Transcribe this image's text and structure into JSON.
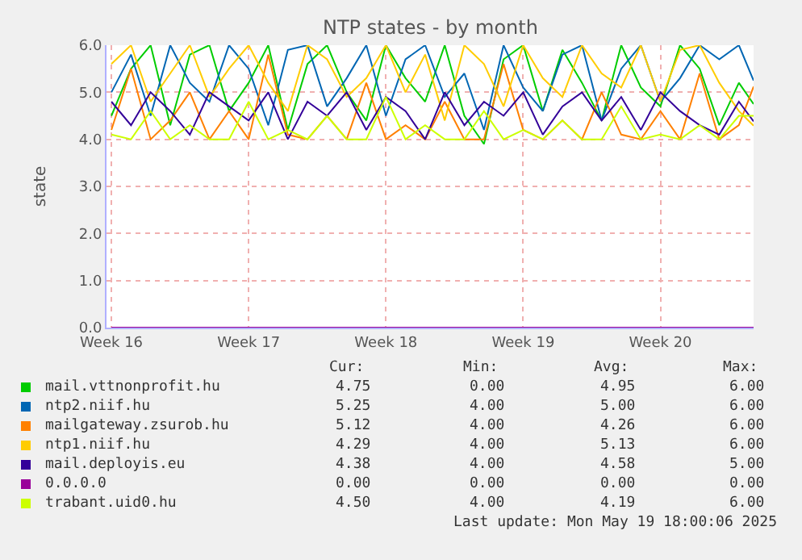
{
  "chart_data": {
    "type": "line",
    "title": "NTP states - by month",
    "ylabel": "state",
    "x": [
      "2025-04-17",
      "2025-04-18",
      "2025-04-19",
      "2025-04-20",
      "2025-04-21",
      "2025-04-22",
      "2025-04-23",
      "2025-04-24",
      "2025-04-25",
      "2025-04-26",
      "2025-04-27",
      "2025-04-28",
      "2025-04-29",
      "2025-04-30",
      "2025-05-01",
      "2025-05-02",
      "2025-05-03",
      "2025-05-04",
      "2025-05-05",
      "2025-05-06",
      "2025-05-07",
      "2025-05-08",
      "2025-05-09",
      "2025-05-10",
      "2025-05-11",
      "2025-05-12",
      "2025-05-13",
      "2025-05-14",
      "2025-05-15",
      "2025-05-16",
      "2025-05-17",
      "2025-05-18",
      "2025-05-19",
      "2025-05-19T18:00"
    ],
    "xlim": [
      "2025-04-16T18:00",
      "2025-05-19T18:00"
    ],
    "xticks": [
      {
        "value": "2025-04-17",
        "label": "Week 16"
      },
      {
        "value": "2025-04-24",
        "label": "Week 17"
      },
      {
        "value": "2025-05-01",
        "label": "Week 18"
      },
      {
        "value": "2025-05-08",
        "label": "Week 19"
      },
      {
        "value": "2025-05-15",
        "label": "Week 20"
      }
    ],
    "ylim": [
      0,
      6
    ],
    "yticks": [
      {
        "value": 0,
        "label": "0.0"
      },
      {
        "value": 1,
        "label": "1.0"
      },
      {
        "value": 2,
        "label": "2.0"
      },
      {
        "value": 3,
        "label": "3.0"
      },
      {
        "value": 4,
        "label": "4.0"
      },
      {
        "value": 5,
        "label": "5.0"
      },
      {
        "value": 6,
        "label": "6.0"
      }
    ],
    "grid": true,
    "legend": "bottom",
    "marker": "none",
    "line_style": "solid",
    "series": [
      {
        "name": "mail.vttnonprofit.hu",
        "color": "#00cc00",
        "values": [
          4.5,
          5.5,
          6,
          4.3,
          5.8,
          6,
          4.6,
          5.2,
          6,
          4.2,
          5.6,
          6,
          5,
          4.4,
          6,
          5.3,
          4.8,
          6,
          4.5,
          3.9,
          5.7,
          6,
          4.6,
          5.9,
          5.2,
          4.4,
          6,
          5.1,
          4.7,
          6,
          5.5,
          4.3,
          5.2,
          4.75
        ]
      },
      {
        "name": "ntp2.niif.hu",
        "color": "#0066b3",
        "values": [
          5,
          5.8,
          4.5,
          6,
          5.2,
          4.8,
          6,
          5.5,
          4.3,
          5.9,
          6,
          4.7,
          5.3,
          6,
          4.5,
          5.7,
          6,
          4.9,
          5.4,
          4.2,
          6,
          5.1,
          4.6,
          5.8,
          6,
          4.4,
          5.5,
          6,
          4.8,
          5.3,
          6,
          5.7,
          6,
          5.25
        ]
      },
      {
        "name": "mailgateway.zsurob.hu",
        "color": "#ff8000",
        "values": [
          4.2,
          5.5,
          4,
          4.4,
          5,
          4,
          4.6,
          4,
          5.8,
          4.1,
          4,
          4.5,
          4,
          5.2,
          4,
          4.3,
          4,
          4.8,
          4,
          4,
          5.6,
          4.2,
          4,
          4.4,
          4,
          5,
          4.1,
          4,
          4.6,
          4,
          5.4,
          4,
          4.3,
          5.12
        ]
      },
      {
        "name": "ntp1.niif.hu",
        "color": "#ffcc00",
        "values": [
          5.6,
          6,
          4.8,
          5.4,
          6,
          4.9,
          5.5,
          6,
          5.2,
          4.6,
          6,
          5.7,
          4.9,
          5.3,
          6,
          5,
          5.8,
          4.4,
          6,
          5.6,
          4.7,
          6,
          5.3,
          4.9,
          6,
          5.4,
          5.1,
          6,
          4.8,
          5.9,
          6,
          5.2,
          4.6,
          4.29
        ]
      },
      {
        "name": "mail.deployis.eu",
        "color": "#330099",
        "values": [
          4.8,
          4.3,
          5,
          4.6,
          4.1,
          5,
          4.7,
          4.4,
          5,
          4,
          4.8,
          4.5,
          5,
          4.2,
          4.9,
          4.6,
          4,
          5,
          4.3,
          4.8,
          4.5,
          5,
          4.1,
          4.7,
          5,
          4.4,
          4.9,
          4.2,
          5,
          4.6,
          4.3,
          4.1,
          4.8,
          4.38
        ]
      },
      {
        "name": "0.0.0.0",
        "color": "#990099",
        "values": [
          0,
          0,
          0,
          0,
          0,
          0,
          0,
          0,
          0,
          0,
          0,
          0,
          0,
          0,
          0,
          0,
          0,
          0,
          0,
          0,
          0,
          0,
          0,
          0,
          0,
          0,
          0,
          0,
          0,
          0,
          0,
          0,
          0,
          0
        ]
      },
      {
        "name": "trabant.uid0.hu",
        "color": "#ccff00",
        "values": [
          4.1,
          4,
          4.6,
          4,
          4.3,
          4,
          4,
          4.8,
          4,
          4.2,
          4,
          4.5,
          4,
          4,
          4.9,
          4,
          4.3,
          4,
          4,
          4.6,
          4,
          4.2,
          4,
          4.4,
          4,
          4,
          4.7,
          4,
          4.1,
          4,
          4.3,
          4,
          4.5,
          4.5
        ]
      }
    ],
    "annotations": [
      "Cur:",
      "Min:",
      "Avg:",
      "Max:",
      "4.75",
      "0.00",
      "4.95",
      "6.00",
      "5.25",
      "4.00",
      "5.00",
      "6.00",
      "5.12",
      "4.00",
      "4.26",
      "6.00",
      "4.29",
      "4.00",
      "5.13",
      "6.00",
      "4.38",
      "4.00",
      "4.58",
      "5.00",
      "0.00",
      "0.00",
      "0.00",
      "0.00",
      "4.50",
      "4.00",
      "4.19",
      "6.00",
      "Last update: Mon May 19 18:00:06 2025"
    ]
  }
}
